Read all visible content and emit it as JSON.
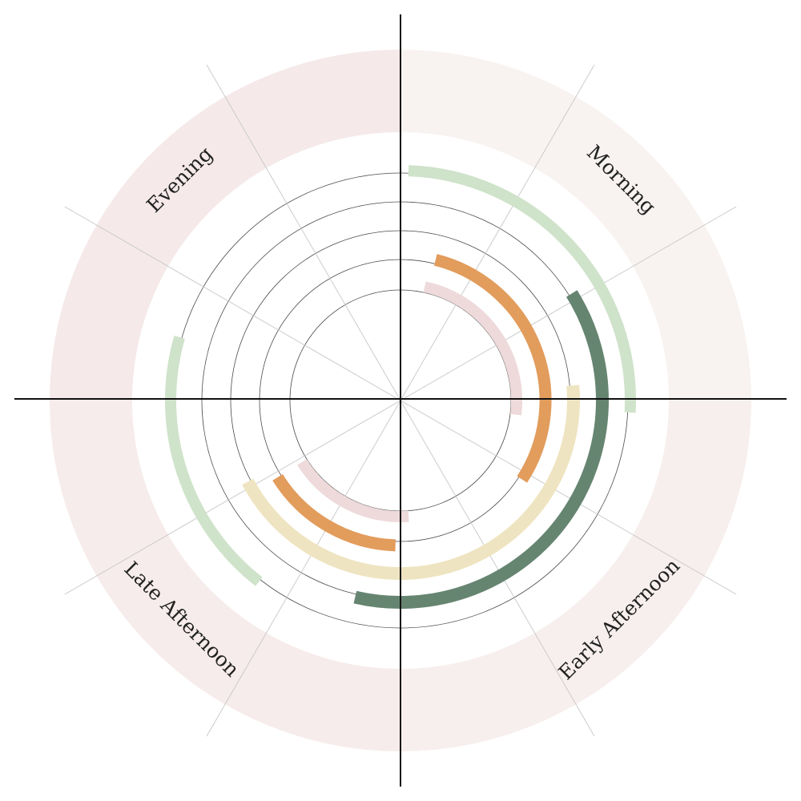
{
  "chart_data": {
    "type": "radial-arc",
    "title": "",
    "quadrants": [
      {
        "label": "Morning",
        "start_deg": 0,
        "end_deg": 90,
        "fill": "#f8f3f1"
      },
      {
        "label": "Early Afternoon",
        "start_deg": 90,
        "end_deg": 180,
        "fill": "#f7efee"
      },
      {
        "label": "Late Afternoon",
        "start_deg": 180,
        "end_deg": 270,
        "fill": "#f6eceb"
      },
      {
        "label": "Evening",
        "start_deg": 270,
        "end_deg": 360,
        "fill": "#f5e9ea"
      }
    ],
    "grid": {
      "rings": 5,
      "spokes_every_deg": 30,
      "axes": true
    },
    "arcs": [
      {
        "track": 1,
        "start_deg": 2,
        "end_deg": 93,
        "color": "#cfe2ca"
      },
      {
        "track": 1,
        "start_deg": 218,
        "end_deg": 286,
        "color": "#cfe2ca"
      },
      {
        "track": 2,
        "start_deg": 58,
        "end_deg": 193,
        "color": "#668571"
      },
      {
        "track": 3,
        "start_deg": 85,
        "end_deg": 242,
        "color": "#efe4c1"
      },
      {
        "track": 4,
        "start_deg": 14,
        "end_deg": 123,
        "color": "#e29c5c"
      },
      {
        "track": 4,
        "start_deg": 182,
        "end_deg": 238,
        "color": "#e29c5c"
      },
      {
        "track": 5,
        "start_deg": 12,
        "end_deg": 97,
        "color": "#eedadb"
      },
      {
        "track": 5,
        "start_deg": 176,
        "end_deg": 238,
        "color": "#eedadb"
      }
    ]
  }
}
